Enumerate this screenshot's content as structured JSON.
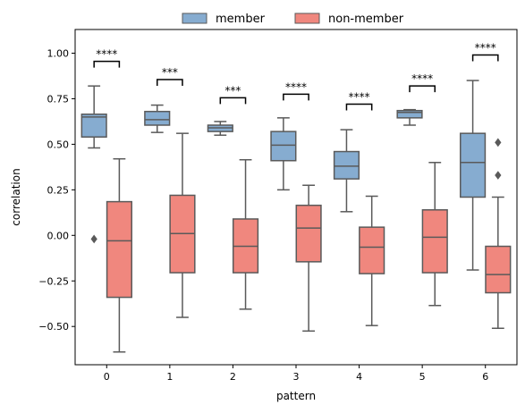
{
  "chart_data": {
    "type": "box",
    "xlabel": "pattern",
    "ylabel": "correlation",
    "categories": [
      "0",
      "1",
      "2",
      "3",
      "4",
      "5",
      "6"
    ],
    "ylim": [
      -0.71,
      1.13
    ],
    "yticks": [
      -0.5,
      -0.25,
      0.0,
      0.25,
      0.5,
      0.75,
      1.0
    ],
    "ytick_labels": [
      "−0.50",
      "−0.25",
      "0.00",
      "0.25",
      "0.50",
      "0.75",
      "1.00"
    ],
    "legend": {
      "placement": "top-center-outside",
      "entries": [
        "member",
        "non-member"
      ]
    },
    "series": [
      {
        "name": "member",
        "color": "#86acd0",
        "boxes": [
          {
            "whislo": 0.48,
            "q1": 0.54,
            "med": 0.65,
            "q3": 0.665,
            "whishi": 0.82,
            "fliers": [
              -0.02
            ]
          },
          {
            "whislo": 0.565,
            "q1": 0.605,
            "med": 0.635,
            "q3": 0.68,
            "whishi": 0.715,
            "fliers": []
          },
          {
            "whislo": 0.55,
            "q1": 0.57,
            "med": 0.59,
            "q3": 0.605,
            "whishi": 0.625,
            "fliers": []
          },
          {
            "whislo": 0.25,
            "q1": 0.41,
            "med": 0.495,
            "q3": 0.57,
            "whishi": 0.645,
            "fliers": []
          },
          {
            "whislo": 0.13,
            "q1": 0.31,
            "med": 0.38,
            "q3": 0.46,
            "whishi": 0.58,
            "fliers": []
          },
          {
            "whislo": 0.605,
            "q1": 0.645,
            "med": 0.675,
            "q3": 0.685,
            "whishi": 0.69,
            "fliers": []
          },
          {
            "whislo": -0.19,
            "q1": 0.21,
            "med": 0.4,
            "q3": 0.56,
            "whishi": 0.85,
            "fliers": []
          }
        ]
      },
      {
        "name": "non-member",
        "color": "#f0877e",
        "boxes": [
          {
            "whislo": -0.64,
            "q1": -0.34,
            "med": -0.03,
            "q3": 0.185,
            "whishi": 0.42,
            "fliers": []
          },
          {
            "whislo": -0.45,
            "q1": -0.205,
            "med": 0.01,
            "q3": 0.22,
            "whishi": 0.56,
            "fliers": []
          },
          {
            "whislo": -0.405,
            "q1": -0.205,
            "med": -0.06,
            "q3": 0.09,
            "whishi": 0.415,
            "fliers": []
          },
          {
            "whislo": -0.525,
            "q1": -0.145,
            "med": 0.04,
            "q3": 0.165,
            "whishi": 0.275,
            "fliers": []
          },
          {
            "whislo": -0.495,
            "q1": -0.21,
            "med": -0.065,
            "q3": 0.045,
            "whishi": 0.215,
            "fliers": []
          },
          {
            "whislo": -0.385,
            "q1": -0.205,
            "med": -0.01,
            "q3": 0.14,
            "whishi": 0.4,
            "fliers": []
          },
          {
            "whislo": -0.51,
            "q1": -0.315,
            "med": -0.215,
            "q3": -0.06,
            "whishi": 0.21,
            "fliers": [
              0.51,
              0.33
            ]
          }
        ]
      }
    ],
    "annotations": [
      {
        "category": "0",
        "label": "****",
        "y": 0.955
      },
      {
        "category": "1",
        "label": "***",
        "y": 0.855
      },
      {
        "category": "2",
        "label": "***",
        "y": 0.755
      },
      {
        "category": "3",
        "label": "****",
        "y": 0.775
      },
      {
        "category": "4",
        "label": "****",
        "y": 0.72
      },
      {
        "category": "5",
        "label": "****",
        "y": 0.82
      },
      {
        "category": "6",
        "label": "****",
        "y": 0.99
      }
    ]
  }
}
